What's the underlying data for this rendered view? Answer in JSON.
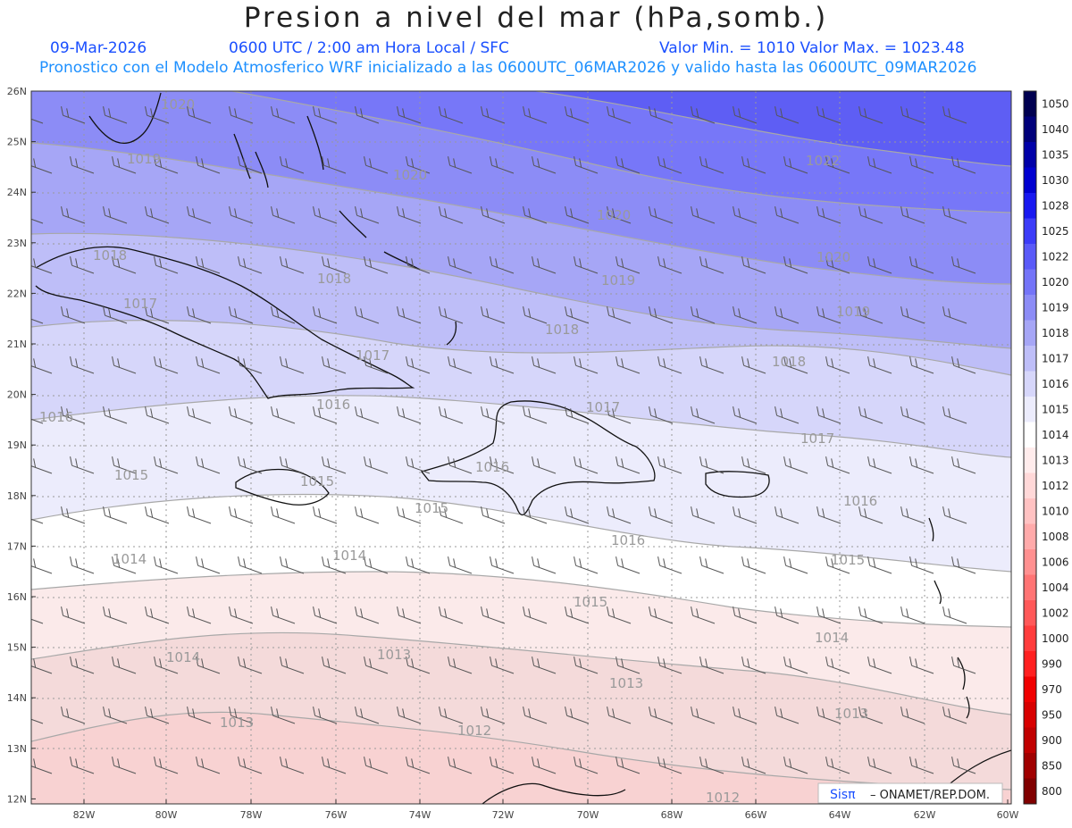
{
  "title": "Presion a nivel del mar (hPa,somb.)",
  "header": {
    "date": "09-Mar-2026",
    "time": "0600 UTC / 2:00 am Hora Local / SFC",
    "minmax": "Valor Min. = 1010  Valor Max. = 1023.48",
    "model_line": "Pronostico con el Modelo Atmosferico WRF inicializado a las 0600UTC_06MAR2026 y valido hasta las  0600UTC_09MAR2026"
  },
  "axes": {
    "lat_labels": [
      "26N",
      "25N",
      "24N",
      "23N",
      "22N",
      "21N",
      "20N",
      "19N",
      "18N",
      "17N",
      "16N",
      "15N",
      "14N",
      "13N",
      "12N"
    ],
    "lon_labels": [
      "82W",
      "80W",
      "78W",
      "76W",
      "74W",
      "72W",
      "70W",
      "68W",
      "66W",
      "64W",
      "62W",
      "60W"
    ]
  },
  "colorbar": {
    "labels": [
      "1050",
      "1040",
      "1035",
      "1030",
      "1028",
      "1025",
      "1022",
      "1020",
      "1019",
      "1018",
      "1017",
      "1016",
      "1015",
      "1014",
      "1013",
      "1012",
      "1010",
      "1008",
      "1006",
      "1004",
      "1002",
      "1000",
      "990",
      "970",
      "950",
      "900",
      "850",
      "800"
    ],
    "colors": [
      "#000050",
      "#00007a",
      "#0000a8",
      "#0000d0",
      "#1818f0",
      "#3c3cf8",
      "#5a5af8",
      "#7474f8",
      "#8c8cf6",
      "#a6a6f6",
      "#bebef8",
      "#d6d6fa",
      "#ececfc",
      "#ffffff",
      "#ffecec",
      "#ffd8d8",
      "#ffc2c2",
      "#ffaaaa",
      "#ff9090",
      "#ff7474",
      "#ff5858",
      "#ff3c3c",
      "#ff2020",
      "#f00000",
      "#d80000",
      "#c00000",
      "#a00000",
      "#800000"
    ]
  },
  "contour_labels": [
    "1020",
    "1019",
    "1020",
    "1020",
    "1022",
    "1018",
    "1018",
    "1019",
    "1020",
    "1017",
    "1018",
    "1019",
    "1017",
    "1018",
    "1016",
    "1016",
    "1017",
    "1017",
    "1015",
    "1016",
    "1016",
    "1015",
    "1015",
    "1016",
    "1015",
    "1014",
    "1014",
    "1015",
    "1014",
    "1014",
    "1013",
    "1013",
    "1013",
    "1013",
    "1012",
    "1012",
    "1012"
  ],
  "logo": {
    "name": "Sisπ",
    "org": "– ONAMET/REP.DOM."
  }
}
